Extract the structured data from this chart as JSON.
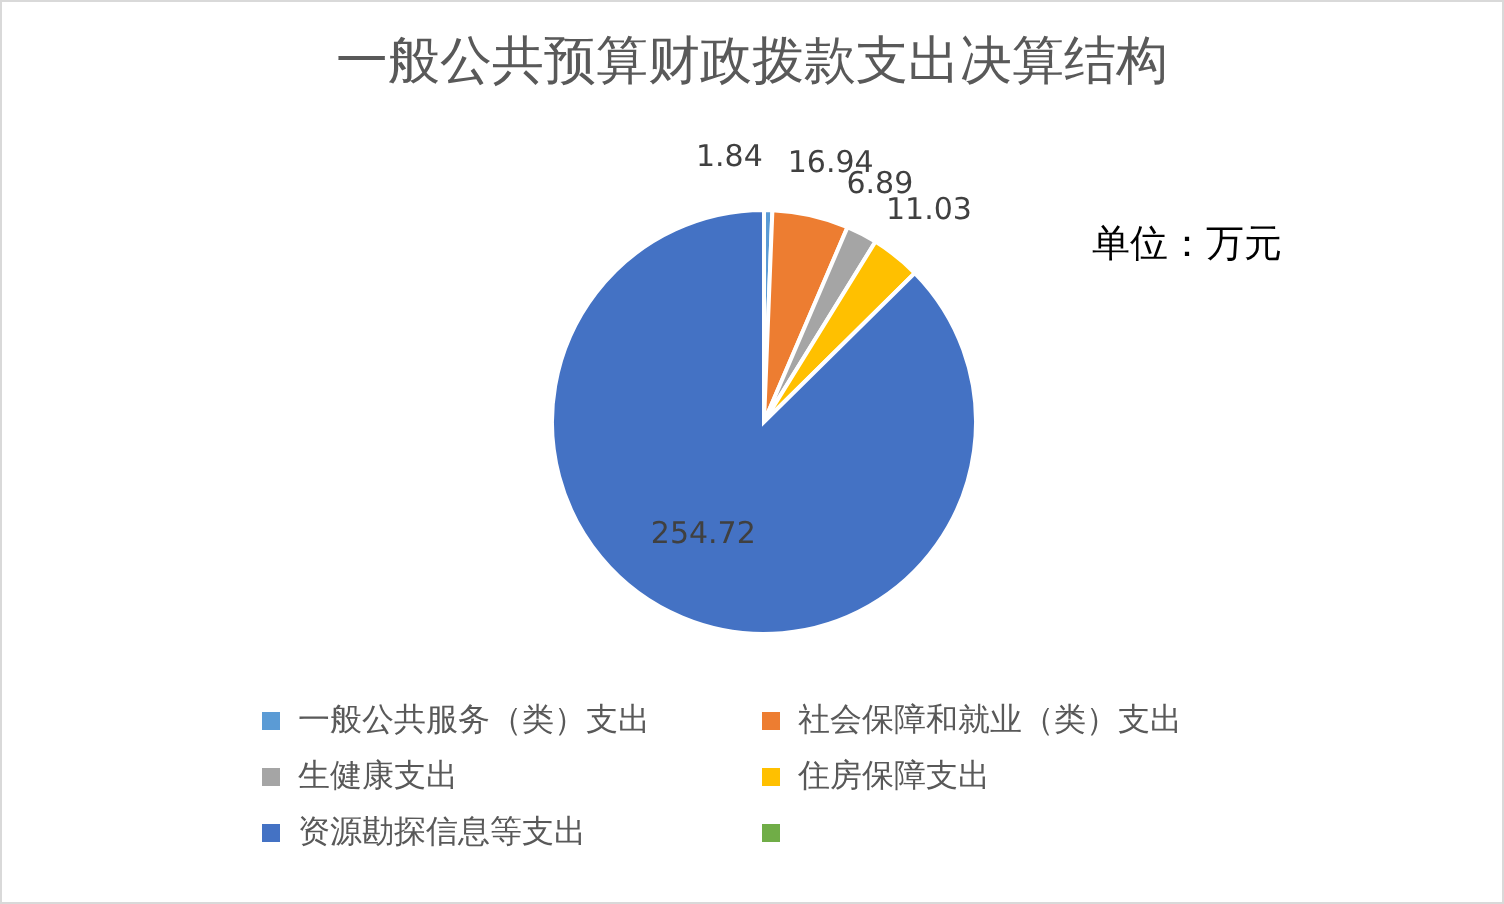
{
  "chart_data": {
    "type": "pie",
    "title": "一般公共预算财政拨款支出决算结构",
    "categories": [
      "一般公共服务（类）支出",
      "社会保障和就业（类）支出",
      "生健康支出",
      "住房保障支出",
      "资源勘探信息等支出",
      null
    ],
    "values": [
      1.84,
      16.94,
      6.89,
      11.03,
      254.72,
      0
    ],
    "value_labels": [
      "1.84",
      "16.94",
      "6.89",
      "11.03",
      "254.72",
      null
    ],
    "colors": [
      "#5b9bd5",
      "#ed7d31",
      "#a5a5a5",
      "#ffc000",
      "#4472c4",
      "#70ad47"
    ],
    "annotations": [
      "单位：万元"
    ],
    "legend": "bottom"
  }
}
